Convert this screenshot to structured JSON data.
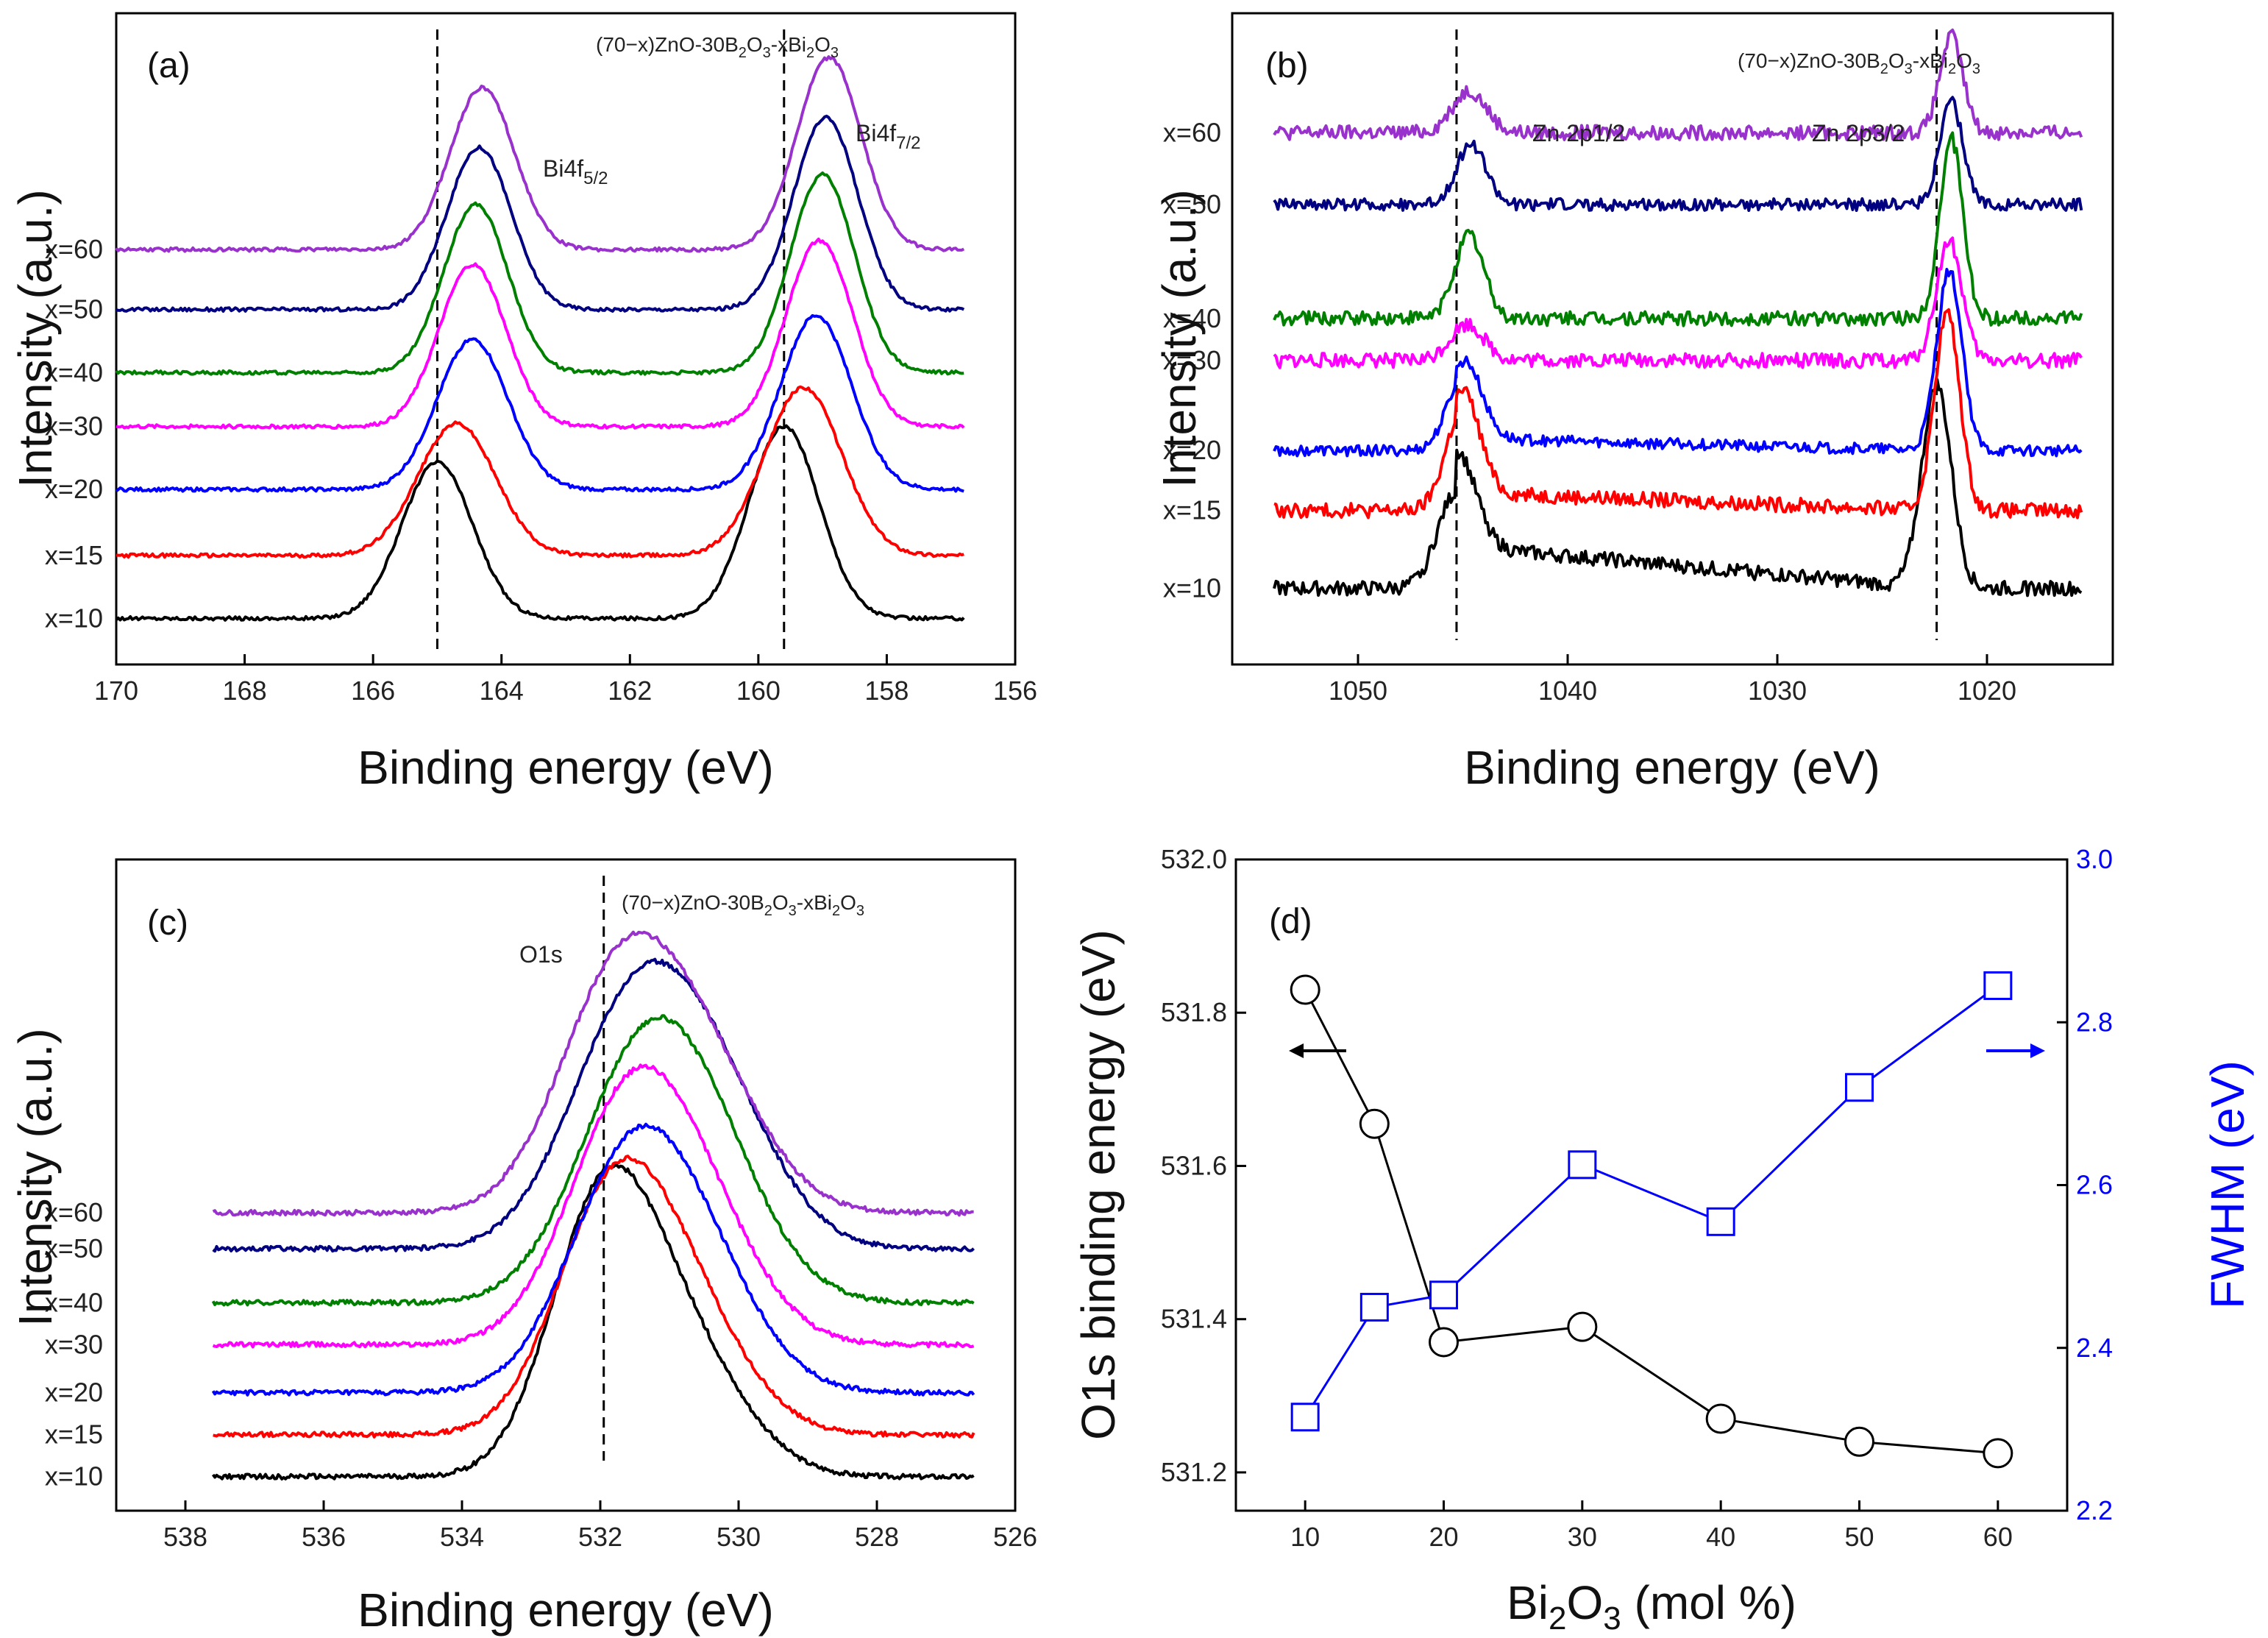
{
  "figure": {
    "formula": "(70−x)ZnO-30B₂O₃-xBi₂O₃"
  },
  "chart_data": [
    {
      "panel": "(a)",
      "type": "line",
      "xlabel": "Binding energy (eV)",
      "ylabel": "Intensity (a.u.)",
      "xlim": [
        170,
        156
      ],
      "xticks": [
        170,
        168,
        166,
        164,
        162,
        160,
        158,
        156
      ],
      "dashed_lines": [
        165.0,
        159.6
      ],
      "annotations": [
        "Bi4f5/2",
        "Bi4f7/2"
      ],
      "series": [
        {
          "name": "x=10",
          "color": "#000000",
          "baseline": 0.04,
          "noise": 0.003,
          "peaks": [
            {
              "c": 165.0,
              "w": 0.55,
              "h": 0.26
            },
            {
              "c": 159.6,
              "w": 0.55,
              "h": 0.32
            }
          ]
        },
        {
          "name": "x=15",
          "color": "#ff0000",
          "baseline": 0.145,
          "noise": 0.003,
          "peaks": [
            {
              "c": 164.7,
              "w": 0.6,
              "h": 0.22
            },
            {
              "c": 159.3,
              "w": 0.6,
              "h": 0.28
            }
          ]
        },
        {
          "name": "x=20",
          "color": "#0000ff",
          "baseline": 0.255,
          "noise": 0.003,
          "peaks": [
            {
              "c": 164.45,
              "w": 0.55,
              "h": 0.25
            },
            {
              "c": 159.1,
              "w": 0.55,
              "h": 0.29
            }
          ]
        },
        {
          "name": "x=30",
          "color": "#ff00ff",
          "baseline": 0.36,
          "noise": 0.003,
          "peaks": [
            {
              "c": 164.45,
              "w": 0.52,
              "h": 0.27
            },
            {
              "c": 159.05,
              "w": 0.52,
              "h": 0.31
            }
          ]
        },
        {
          "name": "x=40",
          "color": "#008000",
          "baseline": 0.45,
          "noise": 0.003,
          "peaks": [
            {
              "c": 164.4,
              "w": 0.5,
              "h": 0.28
            },
            {
              "c": 159.0,
              "w": 0.5,
              "h": 0.33
            }
          ]
        },
        {
          "name": "x=50",
          "color": "#000080",
          "baseline": 0.555,
          "noise": 0.003,
          "peaks": [
            {
              "c": 164.35,
              "w": 0.5,
              "h": 0.27
            },
            {
              "c": 158.95,
              "w": 0.5,
              "h": 0.32
            }
          ]
        },
        {
          "name": "x=60",
          "color": "#9932cc",
          "baseline": 0.655,
          "noise": 0.003,
          "peaks": [
            {
              "c": 164.3,
              "w": 0.5,
              "h": 0.27
            },
            {
              "c": 158.9,
              "w": 0.5,
              "h": 0.32
            }
          ]
        }
      ]
    },
    {
      "panel": "(b)",
      "type": "line",
      "xlabel": "Binding energy (eV)",
      "ylabel": "Intensity (a.u.)",
      "xlim": [
        1056,
        1014
      ],
      "xticks": [
        1050,
        1040,
        1030,
        1020
      ],
      "dashed_lines": [
        1045.3,
        1022.4
      ],
      "annotations": [
        "Zn 2p1/2",
        "Zn 2p3/2"
      ],
      "series": [
        {
          "name": "x=10",
          "color": "#000000",
          "baseline": 0.09,
          "noise": 0.012,
          "tail": 0.07,
          "peaks": [
            {
              "c": 1045.3,
              "w": 0.9,
              "h": 0.16
            },
            {
              "c": 1022.4,
              "w": 0.7,
              "h": 0.34
            }
          ]
        },
        {
          "name": "x=15",
          "color": "#ff0000",
          "baseline": 0.22,
          "noise": 0.012,
          "tail": 0.03,
          "peaks": [
            {
              "c": 1045.0,
              "w": 0.8,
              "h": 0.17
            },
            {
              "c": 1021.9,
              "w": 0.6,
              "h": 0.33
            }
          ]
        },
        {
          "name": "x=20",
          "color": "#0000ff",
          "baseline": 0.32,
          "noise": 0.009,
          "tail": 0.02,
          "peaks": [
            {
              "c": 1044.9,
              "w": 0.8,
              "h": 0.13
            },
            {
              "c": 1021.8,
              "w": 0.6,
              "h": 0.3
            }
          ]
        },
        {
          "name": "x=30",
          "color": "#ff00ff",
          "baseline": 0.47,
          "noise": 0.012,
          "tail": 0.0,
          "peaks": [
            {
              "c": 1044.8,
              "w": 0.8,
              "h": 0.06
            },
            {
              "c": 1021.8,
              "w": 0.6,
              "h": 0.2
            }
          ]
        },
        {
          "name": "x=40",
          "color": "#008000",
          "baseline": 0.54,
          "noise": 0.012,
          "tail": 0.0,
          "peaks": [
            {
              "c": 1044.7,
              "w": 0.7,
              "h": 0.14
            },
            {
              "c": 1021.7,
              "w": 0.55,
              "h": 0.3
            }
          ]
        },
        {
          "name": "x=50",
          "color": "#000080",
          "baseline": 0.73,
          "noise": 0.01,
          "tail": 0.0,
          "peaks": [
            {
              "c": 1044.6,
              "w": 0.7,
              "h": 0.1
            },
            {
              "c": 1021.7,
              "w": 0.55,
              "h": 0.17
            }
          ]
        },
        {
          "name": "x=60",
          "color": "#9932cc",
          "baseline": 0.85,
          "noise": 0.012,
          "tail": 0.0,
          "peaks": [
            {
              "c": 1044.7,
              "w": 0.8,
              "h": 0.07
            },
            {
              "c": 1021.7,
              "w": 0.55,
              "h": 0.16
            }
          ]
        }
      ]
    },
    {
      "panel": "(c)",
      "type": "line",
      "xlabel": "Binding energy (eV)",
      "ylabel": "Intensity (a.u.)",
      "xlim": [
        539,
        526
      ],
      "xticks": [
        538,
        536,
        534,
        532,
        530,
        528,
        526
      ],
      "dashed_lines": [
        531.95
      ],
      "annotations": [
        "O1s"
      ],
      "series": [
        {
          "name": "x=10",
          "color": "#000000",
          "baseline": 0.02,
          "noise": 0.004,
          "peaks": [
            {
              "c": 532.0,
              "w": 0.75,
              "h": 0.4
            },
            {
              "c": 530.9,
              "w": 0.9,
              "h": 0.22
            }
          ]
        },
        {
          "name": "x=15",
          "color": "#ff0000",
          "baseline": 0.09,
          "noise": 0.004,
          "peaks": [
            {
              "c": 531.9,
              "w": 0.8,
              "h": 0.32
            },
            {
              "c": 530.9,
              "w": 0.9,
              "h": 0.22
            }
          ]
        },
        {
          "name": "x=20",
          "color": "#0000ff",
          "baseline": 0.16,
          "noise": 0.004,
          "peaks": [
            {
              "c": 531.7,
              "w": 0.85,
              "h": 0.3
            },
            {
              "c": 530.7,
              "w": 0.9,
              "h": 0.22
            }
          ]
        },
        {
          "name": "x=30",
          "color": "#ff00ff",
          "baseline": 0.24,
          "noise": 0.004,
          "peaks": [
            {
              "c": 531.7,
              "w": 0.85,
              "h": 0.32
            },
            {
              "c": 530.7,
              "w": 0.9,
              "h": 0.22
            }
          ]
        },
        {
          "name": "x=40",
          "color": "#008000",
          "baseline": 0.31,
          "noise": 0.004,
          "peaks": [
            {
              "c": 531.5,
              "w": 0.9,
              "h": 0.33
            },
            {
              "c": 530.5,
              "w": 0.9,
              "h": 0.22
            }
          ]
        },
        {
          "name": "x=50",
          "color": "#000080",
          "baseline": 0.4,
          "noise": 0.004,
          "peaks": [
            {
              "c": 531.6,
              "w": 0.9,
              "h": 0.35
            },
            {
              "c": 530.4,
              "w": 0.9,
              "h": 0.24
            }
          ]
        },
        {
          "name": "x=60",
          "color": "#9932cc",
          "baseline": 0.46,
          "noise": 0.004,
          "peaks": [
            {
              "c": 531.8,
              "w": 0.85,
              "h": 0.34
            },
            {
              "c": 530.6,
              "w": 0.9,
              "h": 0.24
            }
          ]
        }
      ]
    },
    {
      "panel": "(d)",
      "type": "scatter",
      "xlabel": "Bi2O3 (mol %)",
      "ylabel": "O1s binding energy (eV)",
      "y2label": "FWHM (eV)",
      "xlim": [
        5,
        65
      ],
      "ylim": [
        531.15,
        532.0
      ],
      "y2lim": [
        2.2,
        3.0
      ],
      "xticks": [
        10,
        20,
        30,
        40,
        50,
        60
      ],
      "yticks": [
        531.2,
        531.4,
        531.6,
        531.8,
        532.0
      ],
      "y2ticks": [
        2.2,
        2.4,
        2.6,
        2.8,
        3.0
      ],
      "series": [
        {
          "name": "O1s binding energy",
          "axis": "left",
          "marker": "circle",
          "color": "#000000",
          "x": [
            10,
            15,
            20,
            30,
            40,
            50,
            60
          ],
          "y": [
            531.83,
            531.655,
            531.37,
            531.39,
            531.27,
            531.24,
            531.225
          ]
        },
        {
          "name": "FWHM",
          "axis": "right",
          "marker": "square",
          "color": "#0000ff",
          "x": [
            10,
            15,
            20,
            30,
            40,
            50,
            60
          ],
          "y": [
            2.315,
            2.45,
            2.465,
            2.625,
            2.555,
            2.72,
            2.845
          ]
        }
      ]
    }
  ]
}
